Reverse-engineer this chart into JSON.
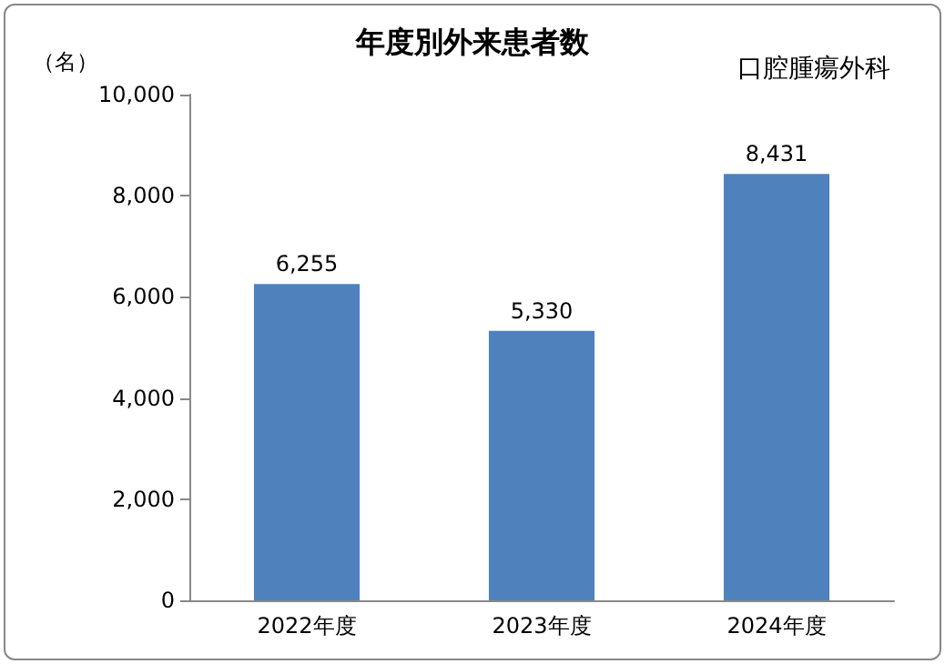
{
  "chart_data": {
    "type": "bar",
    "title": "年度別外来患者数",
    "ylabel": "（名）",
    "annotations": [
      "口腔腫瘍外科"
    ],
    "categories": [
      "2022年度",
      "2023年度",
      "2024年度"
    ],
    "values": [
      6255,
      5330,
      8431
    ],
    "value_labels": [
      "6,255",
      "5,330",
      "8,431"
    ],
    "color": "#4f81bd",
    "ylim": [
      0,
      10000
    ],
    "yticks": [
      {
        "value": 0,
        "label": "0"
      },
      {
        "value": 2000,
        "label": "2,000"
      },
      {
        "value": 4000,
        "label": "4,000"
      },
      {
        "value": 6000,
        "label": "6,000"
      },
      {
        "value": 8000,
        "label": "8,000"
      },
      {
        "value": 10000,
        "label": "10,000"
      }
    ],
    "grid": false
  }
}
